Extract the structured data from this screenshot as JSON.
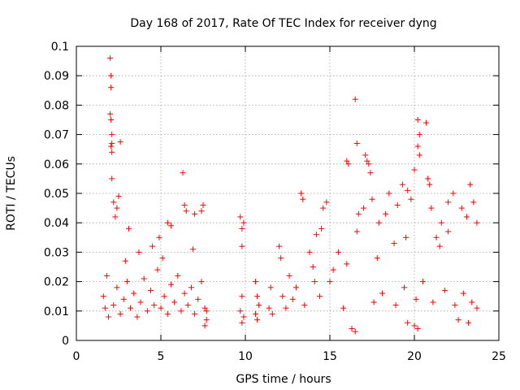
{
  "chart_data": {
    "type": "scatter",
    "title": "Day 168 of 2017, Rate Of TEC Index for receiver dyng",
    "xlabel": "GPS time / hours",
    "ylabel": "ROTI / TECUs",
    "xlim": [
      0,
      25
    ],
    "ylim": [
      0,
      0.1
    ],
    "xticks": [
      0,
      5,
      10,
      15,
      20,
      25
    ],
    "xtick_labels": [
      "0",
      "5",
      "10",
      "15",
      "20",
      "25"
    ],
    "yticks": [
      0,
      0.01,
      0.02,
      0.03,
      0.04,
      0.05,
      0.06,
      0.07,
      0.08,
      0.09,
      0.1
    ],
    "ytick_labels": [
      "0",
      "0.01",
      "0.02",
      "0.03",
      "0.04",
      "0.05",
      "0.06",
      "0.07",
      "0.08",
      "0.09",
      "0.1"
    ],
    "grid": true,
    "marker": "+",
    "color": "#ff0000",
    "points": [
      [
        2.0,
        0.096
      ],
      [
        2.05,
        0.09
      ],
      [
        2.05,
        0.086
      ],
      [
        2.0,
        0.077
      ],
      [
        2.05,
        0.075
      ],
      [
        2.1,
        0.07
      ],
      [
        2.1,
        0.067
      ],
      [
        2.05,
        0.066
      ],
      [
        2.1,
        0.064
      ],
      [
        2.6,
        0.0675
      ],
      [
        2.1,
        0.055
      ],
      [
        2.2,
        0.047
      ],
      [
        2.5,
        0.049
      ],
      [
        2.3,
        0.042
      ],
      [
        2.4,
        0.045
      ],
      [
        6.3,
        0.057
      ],
      [
        6.4,
        0.046
      ],
      [
        6.5,
        0.044
      ],
      [
        7.4,
        0.044
      ],
      [
        7.5,
        0.046
      ],
      [
        7.0,
        0.043
      ],
      [
        5.4,
        0.04
      ],
      [
        5.6,
        0.039
      ],
      [
        3.1,
        0.038
      ],
      [
        1.8,
        0.022
      ],
      [
        1.6,
        0.015
      ],
      [
        1.7,
        0.011
      ],
      [
        1.9,
        0.008
      ],
      [
        2.2,
        0.012
      ],
      [
        2.4,
        0.018
      ],
      [
        2.6,
        0.009
      ],
      [
        2.8,
        0.014
      ],
      [
        3.0,
        0.02
      ],
      [
        3.2,
        0.011
      ],
      [
        3.4,
        0.016
      ],
      [
        3.6,
        0.008
      ],
      [
        3.8,
        0.013
      ],
      [
        4.0,
        0.021
      ],
      [
        4.2,
        0.01
      ],
      [
        4.4,
        0.017
      ],
      [
        4.6,
        0.012
      ],
      [
        4.8,
        0.024
      ],
      [
        5.0,
        0.011
      ],
      [
        5.2,
        0.015
      ],
      [
        5.4,
        0.009
      ],
      [
        5.6,
        0.019
      ],
      [
        5.8,
        0.013
      ],
      [
        6.0,
        0.022
      ],
      [
        6.2,
        0.01
      ],
      [
        6.4,
        0.016
      ],
      [
        6.6,
        0.012
      ],
      [
        6.8,
        0.018
      ],
      [
        7.0,
        0.009
      ],
      [
        7.2,
        0.014
      ],
      [
        7.4,
        0.02
      ],
      [
        7.6,
        0.011
      ],
      [
        4.5,
        0.032
      ],
      [
        4.9,
        0.035
      ],
      [
        3.7,
        0.03
      ],
      [
        6.9,
        0.031
      ],
      [
        2.9,
        0.027
      ],
      [
        5.1,
        0.028
      ],
      [
        7.7,
        0.01
      ],
      [
        7.7,
        0.007
      ],
      [
        7.6,
        0.005
      ],
      [
        9.7,
        0.042
      ],
      [
        9.8,
        0.038
      ],
      [
        9.8,
        0.032
      ],
      [
        9.9,
        0.04
      ],
      [
        9.8,
        0.015
      ],
      [
        9.7,
        0.01
      ],
      [
        9.9,
        0.008
      ],
      [
        9.8,
        0.006
      ],
      [
        10.6,
        0.02
      ],
      [
        10.7,
        0.015
      ],
      [
        10.8,
        0.012
      ],
      [
        10.6,
        0.009
      ],
      [
        10.7,
        0.007
      ],
      [
        11.4,
        0.011
      ],
      [
        11.5,
        0.018
      ],
      [
        11.6,
        0.009
      ],
      [
        12.0,
        0.032
      ],
      [
        12.1,
        0.028
      ],
      [
        12.2,
        0.015
      ],
      [
        12.4,
        0.011
      ],
      [
        12.6,
        0.022
      ],
      [
        13.3,
        0.05
      ],
      [
        13.4,
        0.048
      ],
      [
        14.8,
        0.047
      ],
      [
        14.6,
        0.045
      ],
      [
        14.2,
        0.036
      ],
      [
        14.5,
        0.038
      ],
      [
        13.8,
        0.03
      ],
      [
        14.0,
        0.025
      ],
      [
        15.0,
        0.02
      ],
      [
        15.5,
        0.03
      ],
      [
        16.0,
        0.061
      ],
      [
        16.1,
        0.06
      ],
      [
        16.5,
        0.082
      ],
      [
        16.6,
        0.067
      ],
      [
        16.7,
        0.043
      ],
      [
        17.1,
        0.063
      ],
      [
        17.2,
        0.061
      ],
      [
        17.3,
        0.06
      ],
      [
        17.4,
        0.057
      ],
      [
        17.5,
        0.048
      ],
      [
        17.0,
        0.045
      ],
      [
        16.6,
        0.037
      ],
      [
        17.9,
        0.04
      ],
      [
        18.3,
        0.043
      ],
      [
        18.5,
        0.05
      ],
      [
        19.0,
        0.046
      ],
      [
        19.3,
        0.053
      ],
      [
        19.6,
        0.051
      ],
      [
        19.8,
        0.048
      ],
      [
        20.0,
        0.058
      ],
      [
        20.2,
        0.075
      ],
      [
        20.3,
        0.07
      ],
      [
        20.2,
        0.066
      ],
      [
        20.3,
        0.063
      ],
      [
        20.7,
        0.074
      ],
      [
        20.8,
        0.055
      ],
      [
        20.9,
        0.053
      ],
      [
        21.0,
        0.045
      ],
      [
        21.3,
        0.035
      ],
      [
        21.6,
        0.04
      ],
      [
        22.0,
        0.047
      ],
      [
        22.3,
        0.05
      ],
      [
        22.8,
        0.045
      ],
      [
        23.1,
        0.042
      ],
      [
        23.3,
        0.053
      ],
      [
        23.5,
        0.047
      ],
      [
        23.7,
        0.04
      ],
      [
        22.0,
        0.037
      ],
      [
        21.5,
        0.032
      ],
      [
        19.5,
        0.035
      ],
      [
        18.8,
        0.033
      ],
      [
        17.8,
        0.028
      ],
      [
        16.0,
        0.026
      ],
      [
        15.2,
        0.024
      ],
      [
        14.1,
        0.02
      ],
      [
        13.0,
        0.018
      ],
      [
        12.8,
        0.014
      ],
      [
        13.5,
        0.012
      ],
      [
        14.4,
        0.015
      ],
      [
        15.8,
        0.011
      ],
      [
        16.3,
        0.004
      ],
      [
        16.5,
        0.003
      ],
      [
        17.6,
        0.013
      ],
      [
        18.1,
        0.016
      ],
      [
        18.9,
        0.012
      ],
      [
        19.4,
        0.018
      ],
      [
        20.1,
        0.014
      ],
      [
        20.5,
        0.02
      ],
      [
        21.1,
        0.013
      ],
      [
        21.8,
        0.017
      ],
      [
        22.4,
        0.012
      ],
      [
        22.9,
        0.016
      ],
      [
        23.4,
        0.013
      ],
      [
        23.7,
        0.011
      ],
      [
        20.2,
        0.004
      ],
      [
        20.0,
        0.005
      ],
      [
        19.6,
        0.006
      ],
      [
        22.6,
        0.007
      ],
      [
        23.2,
        0.006
      ]
    ]
  }
}
